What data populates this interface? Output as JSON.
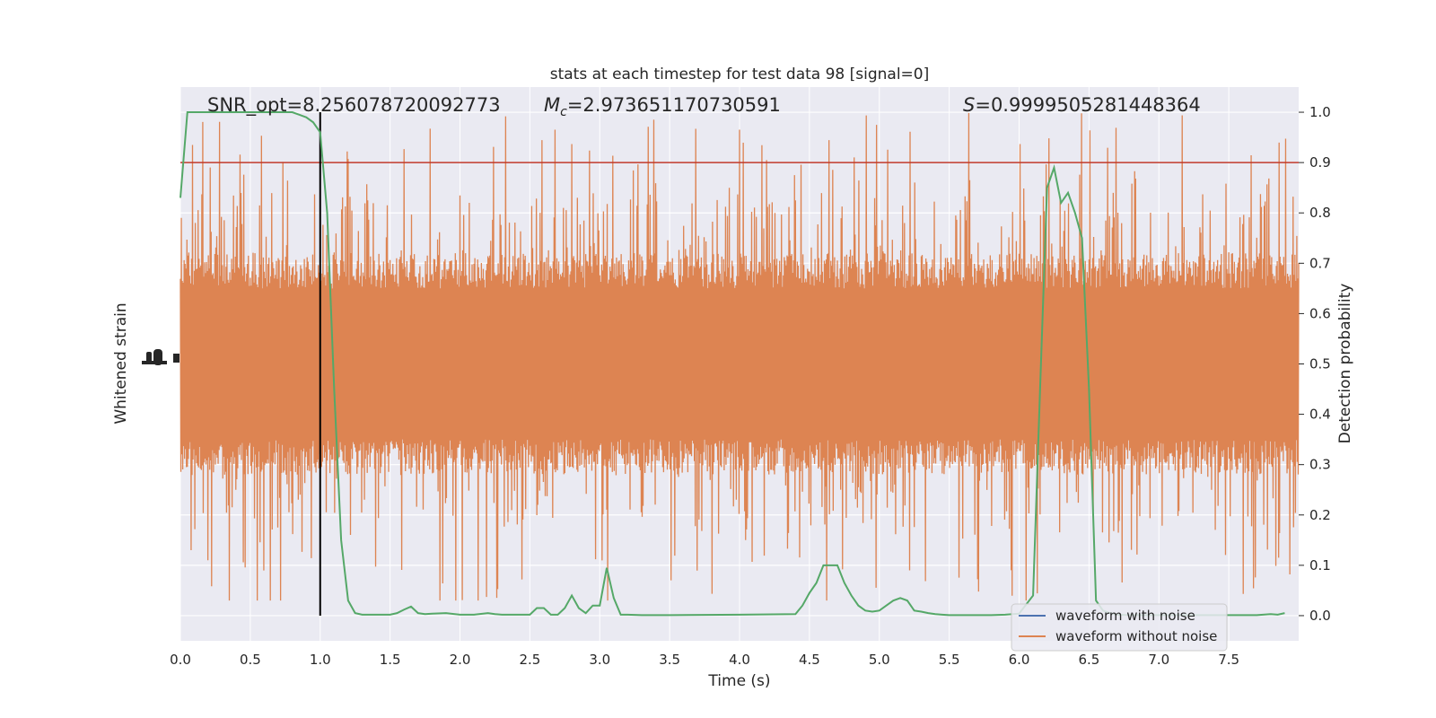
{
  "chart_data": {
    "type": "line",
    "title": "stats at each timestep for test data 98 [signal=0]",
    "xlabel": "Time (s)",
    "ylabel_left": "Whitened strain",
    "ylabel_right": "Detection probability",
    "xlim": [
      0,
      8.0
    ],
    "ylim_right": [
      -0.05,
      1.05
    ],
    "x_ticks": [
      "0.0",
      "0.5",
      "1.0",
      "1.5",
      "2.0",
      "2.5",
      "3.0",
      "3.5",
      "4.0",
      "4.5",
      "5.0",
      "5.5",
      "6.0",
      "6.5",
      "7.0",
      "7.5"
    ],
    "y_ticks_right": [
      "0.0",
      "0.1",
      "0.2",
      "0.3",
      "0.4",
      "0.5",
      "0.6",
      "0.7",
      "0.8",
      "0.9",
      "1.0"
    ],
    "grid": true,
    "annotations": [
      {
        "text": "SNR_opt=8.256078720092773",
        "x": 0.2,
        "y": 1.0
      },
      {
        "prefix": "M",
        "sub": "c",
        "text": "=2.973651170730591",
        "x": 2.6,
        "y": 1.0
      },
      {
        "prefix": "S",
        "text": "=0.9999505281448364",
        "x": 5.6,
        "y": 1.0
      }
    ],
    "threshold": {
      "y": 0.9,
      "color": "#c0392b"
    },
    "marker_line": {
      "x": 1.0,
      "y_range": [
        0.0,
        1.0
      ],
      "color": "#000000"
    },
    "legend": {
      "placement": "lower-right",
      "entries": [
        {
          "label": "waveform with noise",
          "color": "#4c72b0"
        },
        {
          "label": "waveform without noise",
          "color": "#dd8452"
        }
      ]
    },
    "colors": {
      "noise": "#dd8452",
      "probability": "#55a868",
      "background": "#eaeaf2",
      "grid": "#ffffff"
    },
    "noise_band": {
      "center": 0.5,
      "typical_low": 0.3,
      "typical_high": 0.7,
      "extreme_low": 0.03,
      "extreme_high": 1.0
    },
    "series": [
      {
        "label": "Detection probability",
        "color": "#55a868",
        "x": [
          0,
          0.05,
          0.1,
          0.15,
          0.2,
          0.3,
          0.4,
          0.5,
          0.6,
          0.7,
          0.8,
          0.85,
          0.9,
          0.95,
          1.0,
          1.05,
          1.1,
          1.15,
          1.2,
          1.25,
          1.3,
          1.35,
          1.4,
          1.5,
          1.55,
          1.6,
          1.65,
          1.7,
          1.75,
          1.8,
          1.9,
          2.0,
          2.1,
          2.2,
          2.25,
          2.3,
          2.4,
          2.5,
          2.55,
          2.6,
          2.65,
          2.7,
          2.75,
          2.8,
          2.85,
          2.9,
          2.95,
          3.0,
          3.05,
          3.1,
          3.15,
          3.2,
          3.3,
          3.5,
          4.0,
          4.4,
          4.45,
          4.5,
          4.55,
          4.6,
          4.65,
          4.7,
          4.75,
          4.8,
          4.85,
          4.9,
          4.95,
          5.0,
          5.05,
          5.1,
          5.15,
          5.2,
          5.25,
          5.3,
          5.35,
          5.4,
          5.45,
          5.5,
          5.55,
          5.6,
          5.7,
          5.8,
          5.9,
          6.0,
          6.1,
          6.15,
          6.2,
          6.25,
          6.3,
          6.35,
          6.4,
          6.45,
          6.5,
          6.55,
          6.6,
          6.65,
          6.7,
          6.8,
          7.0,
          7.5,
          7.7,
          7.8,
          7.85,
          7.9
        ],
        "y": [
          0.83,
          1.0,
          1.0,
          1.0,
          1.0,
          1.0,
          1.0,
          1.0,
          1.0,
          1.0,
          1.0,
          0.995,
          0.99,
          0.98,
          0.96,
          0.8,
          0.45,
          0.15,
          0.03,
          0.005,
          0.002,
          0.002,
          0.002,
          0.002,
          0.005,
          0.012,
          0.018,
          0.005,
          0.003,
          0.004,
          0.005,
          0.002,
          0.002,
          0.005,
          0.003,
          0.002,
          0.002,
          0.002,
          0.015,
          0.015,
          0.002,
          0.002,
          0.015,
          0.04,
          0.015,
          0.005,
          0.02,
          0.02,
          0.095,
          0.035,
          0.002,
          0.002,
          0.001,
          0.001,
          0.002,
          0.003,
          0.02,
          0.045,
          0.065,
          0.1,
          0.1,
          0.1,
          0.065,
          0.04,
          0.02,
          0.01,
          0.008,
          0.01,
          0.02,
          0.03,
          0.035,
          0.03,
          0.01,
          0.008,
          0.005,
          0.003,
          0.002,
          0.001,
          0.001,
          0.001,
          0.001,
          0.001,
          0.002,
          0.004,
          0.04,
          0.45,
          0.85,
          0.89,
          0.82,
          0.84,
          0.8,
          0.75,
          0.45,
          0.03,
          0.01,
          0.005,
          0.002,
          0.001,
          0.001,
          0.001,
          0.001,
          0.003,
          0.002,
          0.005
        ]
      }
    ]
  }
}
